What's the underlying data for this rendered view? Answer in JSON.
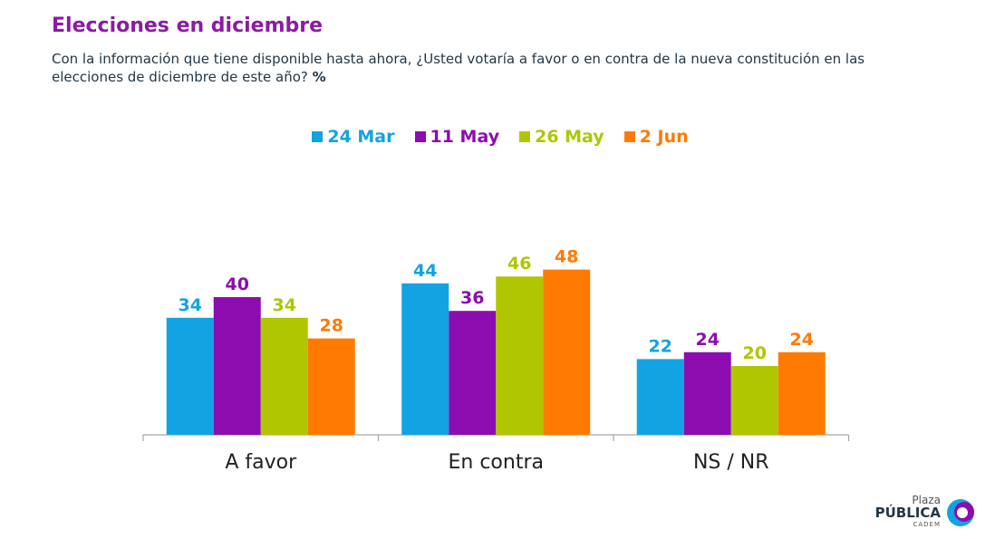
{
  "title": "Elecciones en diciembre",
  "subtitle": "Con la información que tiene disponible hasta ahora, ¿Usted votaría a favor o en contra de la nueva constitución en las elecciones de diciembre de este año?",
  "unit": "%",
  "colors": {
    "title": "#8C1AA6",
    "series": [
      "#12A3E3",
      "#8C0CB0",
      "#AFC600",
      "#FF7A00"
    ]
  },
  "chart_data": {
    "type": "bar",
    "categories": [
      "A favor",
      "En contra",
      "NS / NR"
    ],
    "series": [
      {
        "name": "24 Mar",
        "values": [
          34,
          44,
          22
        ]
      },
      {
        "name": "11 May",
        "values": [
          40,
          36,
          24
        ]
      },
      {
        "name": "26 May",
        "values": [
          34,
          46,
          20
        ]
      },
      {
        "name": "2 Jun",
        "values": [
          28,
          48,
          24
        ]
      }
    ],
    "ylim": [
      0,
      50
    ],
    "grid": false,
    "legend": "top-center",
    "data_labels": true
  },
  "logo": {
    "line1": "Plaza",
    "line2": "PÚBLICA",
    "line3": "CADEM"
  }
}
